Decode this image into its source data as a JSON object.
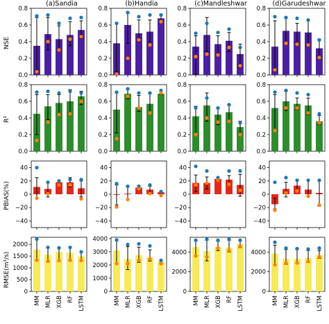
{
  "colors": {
    "NSE": "#4b1f9e",
    "R2": "#2e8b2e",
    "PBIAS": "#e0281c",
    "RMSE": "#f6ea5a",
    "dot_high": "#1f77b4",
    "dot_low": "#ff7f0e",
    "error_bar": "#000000"
  },
  "chart_data": {
    "type": "bar",
    "layout": "grid 4 rows x 4 columns, shared x categories",
    "columns": [
      "(a)Sandia",
      "(b)Handia",
      "(c)Mandleshwar",
      "(d)Garudeshwar"
    ],
    "categories": [
      "MM",
      "MLR",
      "XGB",
      "RF",
      "LSTM"
    ],
    "rows": [
      {
        "key": "NSE",
        "ylabel": "NSE",
        "ylim": [
          0,
          0.8
        ],
        "yticks": [
          "0.0",
          "0.2",
          "0.4",
          "0.6",
          "0.8"
        ],
        "panels": [
          {
            "bars": [
              0.35,
              0.49,
              0.43,
              0.48,
              0.54
            ],
            "high": [
              0.71,
              0.72,
              0.62,
              0.68,
              0.69
            ],
            "low": [
              0.04,
              0.4,
              0.3,
              0.43,
              0.46
            ],
            "err_low": [
              0.06,
              0.3,
              0.3,
              0.35,
              0.44
            ],
            "err_high": [
              0.69,
              0.69,
              0.59,
              0.64,
              0.65
            ]
          },
          {
            "bars": [
              0.38,
              0.6,
              0.5,
              0.52,
              0.68
            ],
            "high": [
              0.62,
              0.75,
              0.7,
              0.72,
              0.72
            ],
            "low": [
              0.01,
              0.2,
              0.42,
              0.36,
              0.64
            ],
            "err_low": [
              0.04,
              0.38,
              0.4,
              0.4,
              0.64
            ],
            "err_high": [
              0.62,
              0.74,
              0.66,
              0.66,
              0.73
            ]
          },
          {
            "bars": [
              0.34,
              0.48,
              0.37,
              0.41,
              0.25
            ],
            "high": [
              0.5,
              0.62,
              0.51,
              0.55,
              0.33
            ],
            "low": [
              0.22,
              0.25,
              0.24,
              0.33,
              0.11
            ],
            "err_low": [
              0.01,
              0.28,
              0.24,
              0.28,
              0.09
            ],
            "err_high": [
              0.47,
              0.69,
              0.47,
              0.51,
              0.37
            ]
          },
          {
            "bars": [
              0.34,
              0.53,
              0.52,
              0.51,
              0.32
            ],
            "high": [
              0.7,
              0.69,
              0.68,
              0.66,
              0.42
            ],
            "low": [
              0.06,
              0.38,
              0.37,
              0.36,
              0.21
            ],
            "err_low": [
              0.04,
              0.37,
              0.39,
              0.36,
              0.22
            ],
            "err_high": [
              0.65,
              0.68,
              0.62,
              0.65,
              0.43
            ]
          }
        ]
      },
      {
        "key": "R2",
        "ylabel": "R²",
        "ylim": [
          0,
          0.8
        ],
        "yticks": [
          "0.0",
          "0.2",
          "0.4",
          "0.6",
          "0.8"
        ],
        "panels": [
          {
            "bars": [
              0.45,
              0.54,
              0.58,
              0.6,
              0.66
            ],
            "high": [
              0.71,
              0.72,
              0.7,
              0.72,
              0.7
            ],
            "low": [
              0.13,
              0.35,
              0.44,
              0.45,
              0.6
            ],
            "err_low": [
              0.2,
              0.38,
              0.45,
              0.46,
              0.56
            ],
            "err_high": [
              0.68,
              0.68,
              0.68,
              0.74,
              0.72
            ]
          },
          {
            "bars": [
              0.5,
              0.69,
              0.53,
              0.57,
              0.69
            ],
            "high": [
              0.71,
              0.75,
              0.7,
              0.7,
              0.73
            ],
            "low": [
              0.15,
              0.66,
              0.52,
              0.46,
              0.7
            ],
            "err_low": [
              0.22,
              0.63,
              0.48,
              0.45,
              0.68
            ],
            "err_high": [
              0.7,
              0.74,
              0.67,
              0.69,
              0.73
            ]
          },
          {
            "bars": [
              0.42,
              0.55,
              0.44,
              0.47,
              0.29
            ],
            "high": [
              0.52,
              0.64,
              0.52,
              0.56,
              0.34
            ],
            "low": [
              0.2,
              0.4,
              0.35,
              0.36,
              0.2
            ],
            "err_low": [
              0.2,
              0.36,
              0.32,
              0.36,
              0.2
            ],
            "err_high": [
              0.54,
              0.7,
              0.51,
              0.55,
              0.36
            ]
          },
          {
            "bars": [
              0.52,
              0.6,
              0.57,
              0.55,
              0.36
            ],
            "high": [
              0.71,
              0.73,
              0.7,
              0.68,
              0.45
            ],
            "low": [
              0.25,
              0.52,
              0.52,
              0.46,
              0.34
            ],
            "err_low": [
              0.26,
              0.49,
              0.5,
              0.44,
              0.32
            ],
            "err_high": [
              0.68,
              0.72,
              0.64,
              0.64,
              0.43
            ]
          }
        ]
      },
      {
        "key": "PBIAS",
        "ylabel": "PBIAS(%)",
        "ylim": [
          -50,
          50
        ],
        "yticks": [
          "−40",
          "−20",
          "0",
          "20",
          "40"
        ],
        "panels": [
          {
            "bars": [
              11,
              8,
              18,
              18,
              9
            ],
            "high": [
              40,
              18,
              20,
              22,
              22
            ],
            "low": [
              -6,
              1,
              14,
              14,
              -7
            ],
            "err_low": [
              -6,
              -4,
              14,
              11,
              -4
            ],
            "err_high": [
              25,
              18,
              21,
              25,
              20
            ]
          },
          {
            "bars": [
              -1,
              1,
              10,
              7,
              3
            ],
            "high": [
              16,
              12,
              12,
              14,
              4
            ],
            "low": [
              -19,
              -8,
              8,
              1,
              -2
            ],
            "err_low": [
              -16,
              -8,
              6,
              1,
              -1
            ],
            "err_high": [
              14,
              11,
              13,
              12,
              5
            ]
          },
          {
            "bars": [
              17,
              17,
              23,
              22,
              14
            ],
            "high": [
              42,
              35,
              25,
              35,
              35
            ],
            "low": [
              14,
              17,
              21,
              15,
              6
            ],
            "err_low": [
              4,
              8,
              20,
              15,
              -3
            ],
            "err_high": [
              29,
              26,
              25,
              28,
              30
            ]
          },
          {
            "bars": [
              -15,
              8,
              13,
              7,
              2
            ],
            "high": [
              18,
              25,
              21,
              21,
              21
            ],
            "low": [
              -24,
              2,
              5,
              -3,
              -16
            ],
            "err_low": [
              -22,
              -4,
              4,
              -3,
              -18
            ],
            "err_high": [
              -6,
              18,
              21,
              21,
              20
            ]
          }
        ]
      },
      {
        "key": "RMSE",
        "ylabel": "RMSE(m³/s)",
        "ylim": [
          0,
          2300
        ],
        "yticks": [
          "0",
          "500",
          "1000",
          "1500",
          "2000"
        ],
        "panels": [
          {
            "bars": [
              1780,
              1560,
              1670,
              1640,
              1490
            ],
            "high": [
              2220,
              1870,
              1850,
              1870,
              1680
            ],
            "low": [
              1330,
              1280,
              1310,
              1330,
              1320
            ],
            "err_low": [
              1300,
              1260,
              1310,
              1300,
              1290
            ],
            "err_high": [
              2200,
              1850,
              1840,
              1850,
              1680
            ]
          },
          {
            "bars": [
              3100,
              2450,
              2750,
              2600,
              2250
            ],
            "high": [
              3900,
              3550,
              3600,
              3450,
              2350
            ],
            "low": [
              2100,
              2100,
              2350,
              2450,
              2100
            ],
            "err_low": [
              2100,
              1650,
              2200,
              2300,
              2150
            ],
            "err_high": [
              3850,
              3400,
              3350,
              3150,
              2300
            ]
          },
          {
            "bars": [
              4500,
              4100,
              4500,
              4450,
              4800
            ],
            "high": [
              5200,
              5300,
              5200,
              5300,
              5200
            ],
            "low": [
              3600,
              3500,
              4400,
              4150,
              4600
            ],
            "err_low": [
              3600,
              3100,
              4150,
              4000,
              4450
            ],
            "err_high": [
              5150,
              5200,
              5100,
              5200,
              5200
            ]
          },
          {
            "bars": [
              3850,
              3300,
              3300,
              3400,
              3700
            ],
            "high": [
              5000,
              4400,
              4350,
              4300,
              4400
            ],
            "low": [
              2700,
              2900,
              2900,
              3050,
              3500
            ],
            "err_low": [
              2750,
              2750,
              2850,
              2950,
              3350
            ],
            "err_high": [
              4700,
              4250,
              4250,
              4150,
              4150
            ]
          }
        ],
        "panel_ylims": [
          [
            0,
            2300
          ],
          [
            0,
            4100
          ],
          [
            0,
            5500
          ],
          [
            0,
            5500
          ]
        ],
        "panel_yticks": [
          [
            "0",
            "500",
            "1000",
            "1500",
            "2000"
          ],
          [
            "0",
            "1000",
            "2000",
            "3000",
            "4000"
          ],
          [
            "0",
            "2000",
            "4000"
          ],
          [
            "0",
            "2000",
            "4000"
          ]
        ]
      }
    ]
  }
}
